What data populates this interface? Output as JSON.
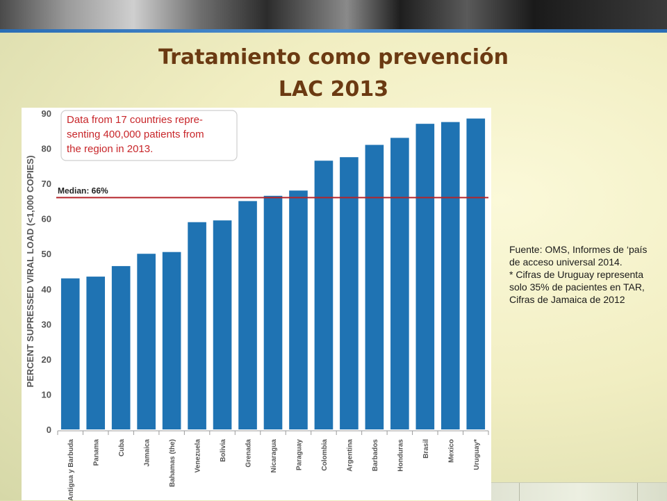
{
  "slide": {
    "title_line1": "Tratamiento como prevención",
    "title_line2": "LAC 2013"
  },
  "colors": {
    "bar": "#1f73b3",
    "median_line": "#b5242a",
    "callout_text": "#c8262a",
    "title": "#6b3a12"
  },
  "chart_data": {
    "type": "bar",
    "ylabel": "PERCENT SUPRESSED VIRAL LOAD (<1,000 COPIES)",
    "ylim": [
      0,
      90
    ],
    "yticks": [
      0,
      10,
      20,
      30,
      40,
      50,
      60,
      70,
      80,
      90
    ],
    "categories": [
      "Antigua y Barbuda",
      "Panama",
      "Cuba",
      "Jamaica",
      "Bahamas (the)",
      "Venezuela",
      "Bolivia",
      "Grenada",
      "Nicaragua",
      "Paraguay",
      "Colombia",
      "Argentina",
      "Barbados",
      "Honduras",
      "Brasil",
      "Mexico",
      "Uruguay*"
    ],
    "values": [
      43,
      43.5,
      46.5,
      50,
      50.5,
      59,
      59.5,
      65,
      66.5,
      68,
      76.5,
      77.5,
      81,
      83,
      87,
      87.5,
      88.5
    ],
    "median": {
      "value": 66,
      "label": "Median: 66%"
    },
    "annotation": "Data from 17 countries repre-\nsenting 400,000 patients from\nthe region in 2013.",
    "grid": false,
    "legend": "none"
  },
  "source_note": {
    "line1": "Fuente: OMS, Informes de ‘país de acceso universal 2014.",
    "line2": "* Cifras de Uruguay representa solo 35% de pacientes en TAR, Cifras de Jamaica de 2012"
  }
}
